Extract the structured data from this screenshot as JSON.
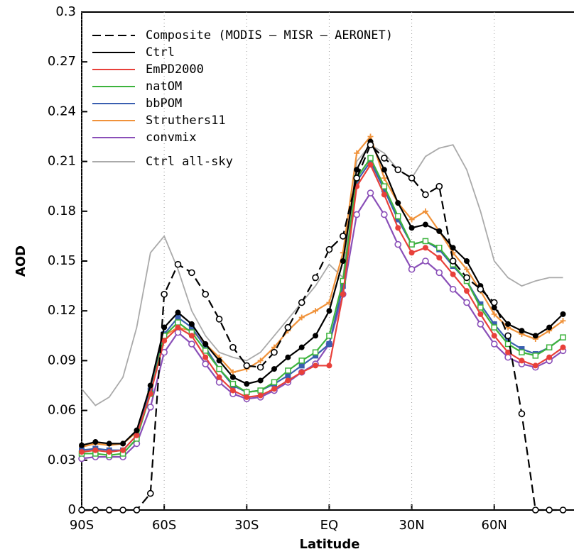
{
  "chart_data": {
    "type": "line",
    "x_label": "Latitude",
    "y_label": "AOD",
    "x": [
      -90,
      -85,
      -80,
      -75,
      -70,
      -65,
      -60,
      -55,
      -50,
      -45,
      -40,
      -35,
      -30,
      -25,
      -20,
      -15,
      -10,
      -5,
      0,
      5,
      10,
      15,
      20,
      25,
      30,
      35,
      40,
      45,
      50,
      55,
      60,
      65,
      70,
      75,
      80,
      85
    ],
    "xlim": [
      -90,
      89
    ],
    "ylim": [
      0,
      0.3
    ],
    "xticks": [
      {
        "value": -90,
        "label": "90S"
      },
      {
        "value": -60,
        "label": "60S"
      },
      {
        "value": -30,
        "label": "30S"
      },
      {
        "value": 0,
        "label": "EQ"
      },
      {
        "value": 30,
        "label": "30N"
      },
      {
        "value": 60,
        "label": "60N"
      }
    ],
    "yticks": [
      0,
      0.03,
      0.06,
      0.09,
      0.12,
      0.15,
      0.18,
      0.21,
      0.24,
      0.27,
      0.3
    ],
    "grid": true,
    "series": [
      {
        "name": "Composite (MODIS – MISR – AERONET)",
        "color": "#000000",
        "dashed": true,
        "marker": "open-circle",
        "values": [
          0,
          0,
          0,
          0,
          0,
          0.01,
          0.13,
          0.148,
          0.143,
          0.13,
          0.115,
          0.098,
          0.087,
          0.086,
          0.095,
          0.11,
          0.125,
          0.14,
          0.157,
          0.165,
          0.2,
          0.22,
          0.212,
          0.205,
          0.2,
          0.19,
          0.195,
          0.15,
          0.14,
          0.133,
          0.125,
          0.105,
          0.058,
          0,
          0,
          0
        ]
      },
      {
        "name": "Ctrl",
        "color": "#000000",
        "marker": "filled-circle",
        "values": [
          0.039,
          0.041,
          0.04,
          0.04,
          0.048,
          0.075,
          0.11,
          0.119,
          0.112,
          0.1,
          0.09,
          0.08,
          0.076,
          0.078,
          0.085,
          0.092,
          0.098,
          0.105,
          0.12,
          0.15,
          0.205,
          0.222,
          0.205,
          0.185,
          0.17,
          0.172,
          0.168,
          0.158,
          0.15,
          0.135,
          0.122,
          0.112,
          0.108,
          0.105,
          0.11,
          0.118
        ]
      },
      {
        "name": "EmPD2000",
        "color": "#e8403a",
        "marker": "filled-circle",
        "values": [
          0.035,
          0.036,
          0.035,
          0.036,
          0.045,
          0.07,
          0.102,
          0.11,
          0.105,
          0.092,
          0.08,
          0.072,
          0.068,
          0.069,
          0.073,
          0.078,
          0.083,
          0.087,
          0.087,
          0.13,
          0.195,
          0.208,
          0.19,
          0.17,
          0.155,
          0.158,
          0.152,
          0.142,
          0.132,
          0.118,
          0.105,
          0.095,
          0.09,
          0.087,
          0.092,
          0.098
        ]
      },
      {
        "name": "natOM",
        "color": "#3cb33c",
        "marker": "open-square",
        "values": [
          0.034,
          0.034,
          0.033,
          0.034,
          0.043,
          0.07,
          0.105,
          0.113,
          0.107,
          0.096,
          0.085,
          0.076,
          0.071,
          0.072,
          0.077,
          0.084,
          0.09,
          0.095,
          0.105,
          0.138,
          0.2,
          0.212,
          0.195,
          0.177,
          0.16,
          0.162,
          0.158,
          0.148,
          0.138,
          0.122,
          0.11,
          0.1,
          0.095,
          0.093,
          0.098,
          0.104
        ]
      },
      {
        "name": "bbPOM",
        "color": "#3a5fb0",
        "marker": "filled-square",
        "values": [
          0.036,
          0.037,
          0.036,
          0.036,
          0.045,
          0.072,
          0.106,
          0.116,
          0.11,
          0.098,
          0.085,
          0.075,
          0.071,
          0.072,
          0.076,
          0.081,
          0.087,
          0.093,
          0.1,
          0.135,
          0.198,
          0.21,
          0.193,
          0.175,
          0.16,
          0.162,
          0.157,
          0.147,
          0.138,
          0.124,
          0.112,
          0.102,
          0.097,
          0.094,
          0.098,
          0.104
        ]
      },
      {
        "name": "Struthers11",
        "color": "#f0923a",
        "marker": "plus",
        "values": [
          0.038,
          0.04,
          0.039,
          0.04,
          0.047,
          0.073,
          0.105,
          0.11,
          0.108,
          0.1,
          0.092,
          0.083,
          0.085,
          0.09,
          0.098,
          0.108,
          0.116,
          0.12,
          0.125,
          0.155,
          0.215,
          0.225,
          0.2,
          0.185,
          0.175,
          0.18,
          0.168,
          0.155,
          0.145,
          0.132,
          0.118,
          0.11,
          0.106,
          0.103,
          0.108,
          0.114
        ]
      },
      {
        "name": "convmix",
        "color": "#8a4fb8",
        "marker": "open-circle",
        "values": [
          0.031,
          0.032,
          0.032,
          0.032,
          0.04,
          0.062,
          0.095,
          0.107,
          0.1,
          0.088,
          0.077,
          0.07,
          0.067,
          0.068,
          0.072,
          0.077,
          0.083,
          0.088,
          0.1,
          0.13,
          0.178,
          0.191,
          0.178,
          0.16,
          0.145,
          0.15,
          0.143,
          0.133,
          0.125,
          0.112,
          0.1,
          0.092,
          0.088,
          0.086,
          0.09,
          0.096
        ]
      },
      {
        "name": "Ctrl all-sky",
        "color": "#aaaaaa",
        "marker": "none",
        "values": [
          0.073,
          0.063,
          0.068,
          0.08,
          0.11,
          0.155,
          0.165,
          0.145,
          0.12,
          0.105,
          0.095,
          0.092,
          0.09,
          0.095,
          0.105,
          0.115,
          0.125,
          0.135,
          0.148,
          0.14,
          0.21,
          0.22,
          0.215,
          0.205,
          0.2,
          0.213,
          0.218,
          0.22,
          0.205,
          0.18,
          0.15,
          0.14,
          0.135,
          0.138,
          0.14,
          0.14
        ]
      }
    ]
  }
}
